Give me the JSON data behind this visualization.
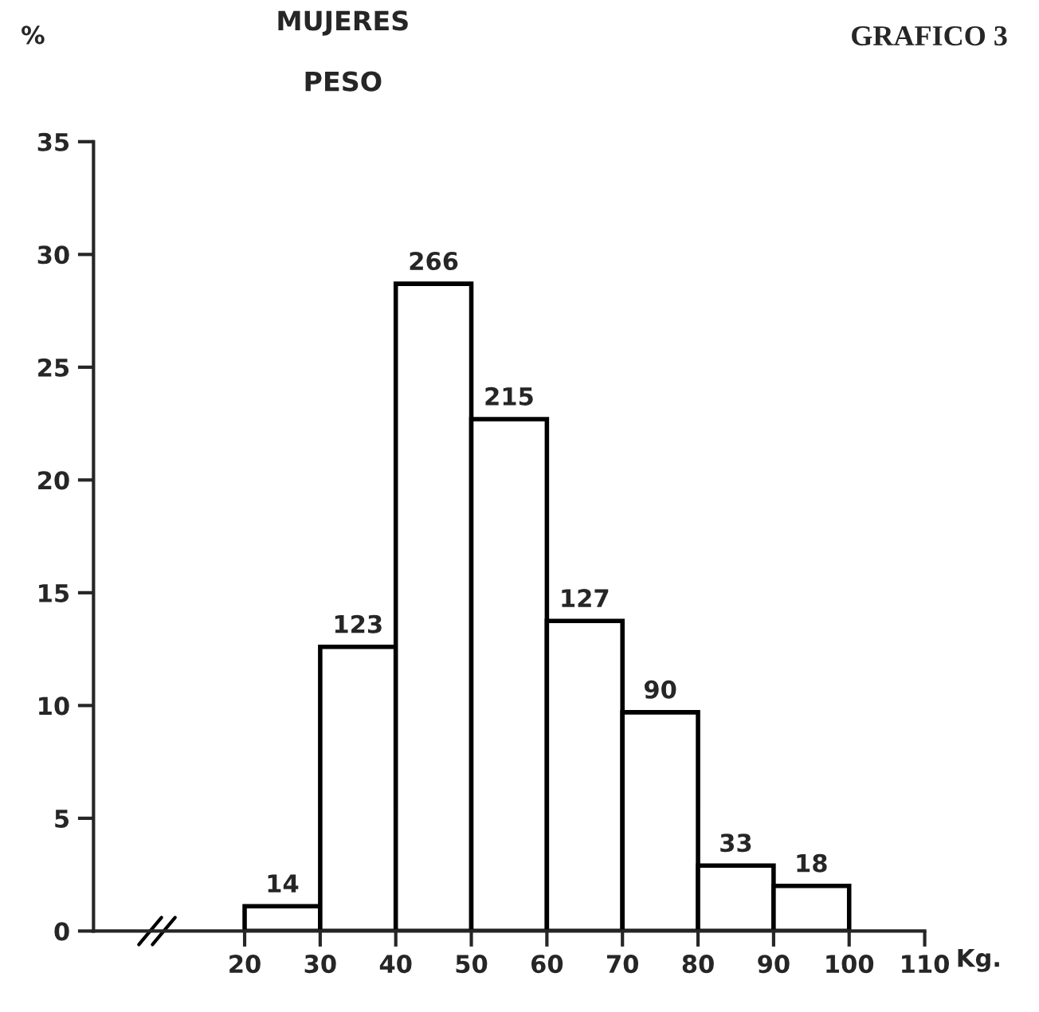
{
  "chart_data": {
    "type": "histogram",
    "title": "MUJERES",
    "subtitle": "PESO",
    "ylabel": "%",
    "xlabel": "Kg.",
    "annotations": [
      "GRAFICO 3",
      {
        "text": "14",
        "x": 25,
        "y": 1.1
      },
      {
        "text": "123",
        "x": 35,
        "y": 12.6
      },
      {
        "text": "266",
        "x": 45,
        "y": 28.7
      },
      {
        "text": "215",
        "x": 55,
        "y": 22.7
      },
      {
        "text": "127",
        "x": 65,
        "y": 13.75
      },
      {
        "text": "90",
        "x": 75,
        "y": 9.7
      },
      {
        "text": "33",
        "x": 85,
        "y": 2.9
      },
      {
        "text": "18",
        "x": 95,
        "y": 2.0
      }
    ],
    "bins": [
      20,
      30,
      40,
      50,
      60,
      70,
      80,
      90,
      100
    ],
    "values": [
      1.1,
      12.6,
      28.7,
      22.7,
      13.75,
      9.7,
      2.9,
      2.0
    ],
    "color": "#ffffff",
    "xlim": [
      0,
      110
    ],
    "xticks": [
      20,
      30,
      40,
      50,
      60,
      70,
      80,
      90,
      100,
      110
    ],
    "ylim": [
      0,
      35
    ],
    "yticks": [
      0,
      5,
      10,
      15,
      20,
      25,
      30,
      35
    ],
    "grid": false,
    "legend": false
  }
}
